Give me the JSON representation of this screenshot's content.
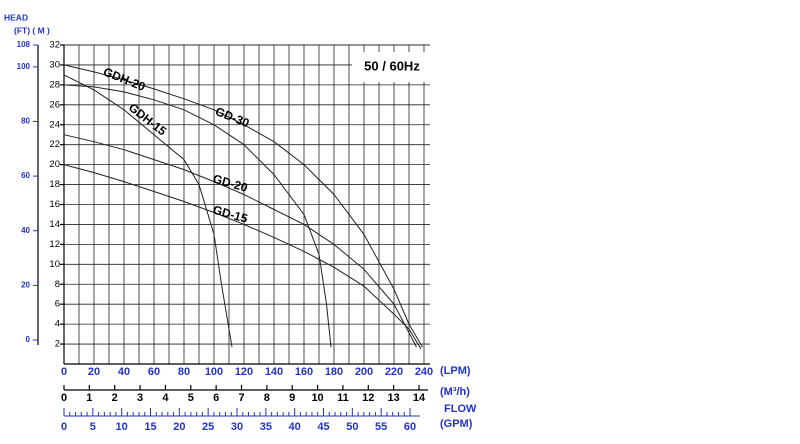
{
  "chart_data": {
    "type": "line",
    "title": "50 / 60Hz",
    "y_label": "HEAD",
    "y_units": "(FT) ( M )",
    "x_units": "(LPM)",
    "x2_units": "(M³/h)",
    "x3_title": "FLOW",
    "x3_units": "(GPM)",
    "xlim": [
      0,
      240
    ],
    "xticks": [
      0,
      20,
      40,
      60,
      80,
      100,
      120,
      140,
      160,
      180,
      200,
      220,
      240
    ],
    "ylim": [
      0,
      32
    ],
    "yticks": [
      2,
      4,
      6,
      8,
      10,
      12,
      14,
      16,
      18,
      20,
      22,
      24,
      26,
      28,
      30,
      32
    ],
    "y2lim": [
      0,
      108
    ],
    "y2ticks": [
      0,
      20,
      40,
      60,
      80,
      100,
      108
    ],
    "x2lim": [
      0,
      14
    ],
    "x2ticks": [
      0,
      1,
      2,
      3,
      4,
      5,
      6,
      7,
      8,
      9,
      10,
      11,
      12,
      13,
      14
    ],
    "x3lim": [
      0,
      60
    ],
    "x3ticks": [
      0,
      5,
      10,
      15,
      20,
      25,
      30,
      35,
      40,
      45,
      50,
      55,
      60
    ],
    "grid": true,
    "series": [
      {
        "name": "GD-30",
        "color": "#222222",
        "x": [
          0,
          20,
          40,
          60,
          80,
          100,
          120,
          140,
          160,
          180,
          200,
          220,
          230,
          239
        ],
        "values": [
          30,
          29.3,
          28.5,
          27.6,
          26.6,
          25.5,
          24,
          22.3,
          20,
          17,
          13,
          7.5,
          4,
          1.7
        ]
      },
      {
        "name": "GDH-20",
        "color": "#222222",
        "x": [
          0,
          20,
          40,
          60,
          80,
          100,
          120,
          140,
          160,
          170,
          175,
          178
        ],
        "values": [
          28,
          27.8,
          27.3,
          26.5,
          25.5,
          24,
          22,
          19,
          15,
          11,
          6,
          1.7
        ]
      },
      {
        "name": "GDH-15",
        "color": "#222222",
        "x": [
          0,
          20,
          40,
          60,
          80,
          90,
          100,
          105,
          112
        ],
        "values": [
          29,
          27.5,
          25.5,
          23,
          20.5,
          18,
          13,
          8,
          1.7
        ]
      },
      {
        "name": "GD-20",
        "color": "#222222",
        "x": [
          0,
          20,
          40,
          60,
          80,
          100,
          120,
          140,
          160,
          180,
          200,
          220,
          235
        ],
        "values": [
          23,
          22.3,
          21.5,
          20.5,
          19.5,
          18.3,
          17,
          15.5,
          14,
          12,
          9.5,
          6,
          1.7
        ]
      },
      {
        "name": "GD-15",
        "color": "#222222",
        "x": [
          0,
          20,
          40,
          60,
          80,
          100,
          120,
          140,
          160,
          180,
          200,
          220,
          230,
          238
        ],
        "values": [
          20,
          19.2,
          18.3,
          17.3,
          16.3,
          15.2,
          14,
          12.7,
          11.3,
          9.7,
          7.8,
          5,
          3.5,
          1.5
        ]
      }
    ]
  }
}
